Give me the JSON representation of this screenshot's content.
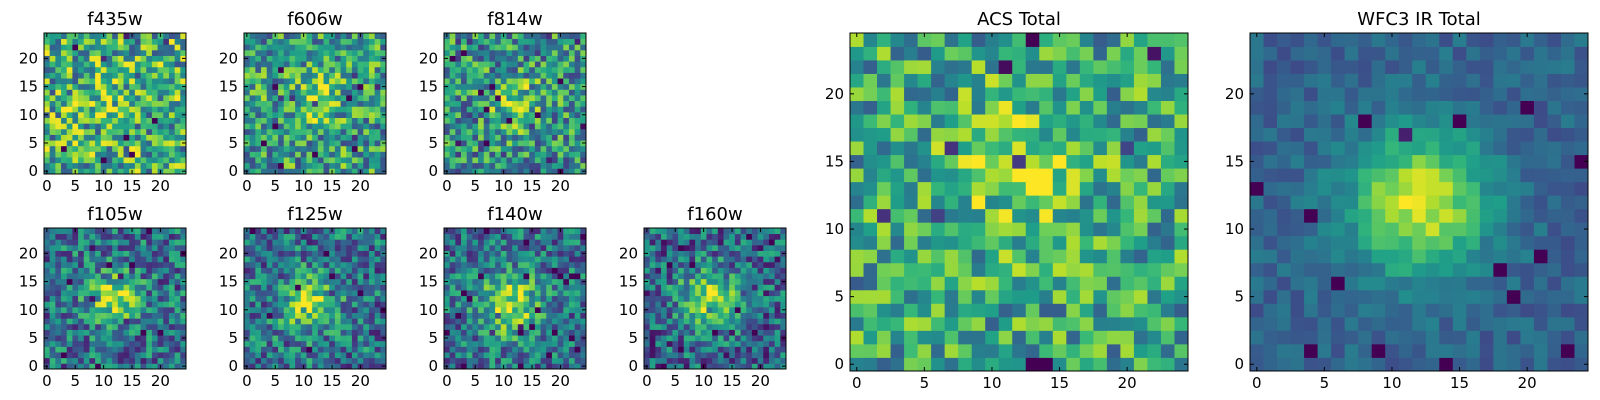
{
  "figure": {
    "colormap": "viridis"
  },
  "chart_data": [
    {
      "type": "heatmap",
      "title": "f435w",
      "grid": 25,
      "center": [
        10,
        12
      ],
      "peak": 0.12,
      "width": 3,
      "noise": 0.38,
      "base": 0.62,
      "seed": 11,
      "xticks": [
        0,
        5,
        10,
        15,
        20
      ],
      "yticks": [
        0,
        5,
        10,
        15,
        20
      ]
    },
    {
      "type": "heatmap",
      "title": "f606w",
      "grid": 25,
      "center": [
        12,
        13
      ],
      "peak": 0.22,
      "width": 3.5,
      "noise": 0.34,
      "base": 0.55,
      "seed": 23,
      "xticks": [
        0,
        5,
        10,
        15,
        20
      ],
      "yticks": [
        0,
        5,
        10,
        15,
        20
      ]
    },
    {
      "type": "heatmap",
      "title": "f814w",
      "grid": 25,
      "center": [
        12,
        12
      ],
      "peak": 0.3,
      "width": 3.2,
      "noise": 0.34,
      "base": 0.5,
      "seed": 37,
      "xticks": [
        0,
        5,
        10,
        15,
        20
      ],
      "yticks": [
        0,
        5,
        10,
        15,
        20
      ]
    },
    {
      "type": "heatmap",
      "title": "f105w",
      "grid": 25,
      "center": [
        12,
        12
      ],
      "peak": 0.5,
      "width": 3,
      "noise": 0.3,
      "base": 0.38,
      "seed": 41,
      "xticks": [
        0,
        5,
        10,
        15,
        20
      ],
      "yticks": [
        0,
        5,
        10,
        15,
        20
      ]
    },
    {
      "type": "heatmap",
      "title": "f125w",
      "grid": 25,
      "center": [
        11,
        11
      ],
      "peak": 0.5,
      "width": 3.3,
      "noise": 0.3,
      "base": 0.38,
      "seed": 53,
      "xticks": [
        0,
        5,
        10,
        15,
        20
      ],
      "yticks": [
        0,
        5,
        10,
        15,
        20
      ]
    },
    {
      "type": "heatmap",
      "title": "f140w",
      "grid": 25,
      "center": [
        11,
        11
      ],
      "peak": 0.5,
      "width": 3.8,
      "noise": 0.28,
      "base": 0.38,
      "seed": 67,
      "xticks": [
        0,
        5,
        10,
        15,
        20
      ],
      "yticks": [
        0,
        5,
        10,
        15,
        20
      ]
    },
    {
      "type": "heatmap",
      "title": "f160w",
      "grid": 25,
      "center": [
        11,
        12
      ],
      "peak": 0.55,
      "width": 3.6,
      "noise": 0.3,
      "base": 0.33,
      "seed": 79,
      "xticks": [
        0,
        5,
        10,
        15,
        20
      ],
      "yticks": [
        0,
        5,
        10,
        15,
        20
      ]
    },
    {
      "type": "heatmap",
      "title": "ACS Total",
      "grid": 25,
      "center": [
        12,
        14
      ],
      "peak": 0.22,
      "width": 4,
      "noise": 0.3,
      "base": 0.58,
      "seed": 97,
      "xticks": [
        0,
        5,
        10,
        15,
        20
      ],
      "yticks": [
        0,
        5,
        10,
        15,
        20
      ]
    },
    {
      "type": "heatmap",
      "title": "WFC3 IR Total",
      "grid": 25,
      "center": [
        12,
        12
      ],
      "peak": 0.62,
      "width": 3.6,
      "noise": 0.1,
      "base": 0.32,
      "seed": 131,
      "xticks": [
        0,
        5,
        10,
        15,
        20
      ],
      "yticks": [
        0,
        5,
        10,
        15,
        20
      ]
    }
  ]
}
